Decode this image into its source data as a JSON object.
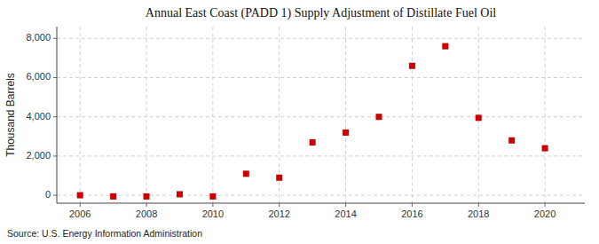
{
  "chart_data": {
    "type": "scatter",
    "title": "Annual East Coast (PADD 1) Supply Adjustment of Distillate Fuel Oil",
    "y_label": "Thousand Barrels",
    "source": "Source: U.S. Energy Information Administration",
    "x": [
      2006,
      2007,
      2008,
      2009,
      2010,
      2011,
      2012,
      2013,
      2014,
      2015,
      2016,
      2017,
      2018,
      2019,
      2020
    ],
    "values": [
      5,
      -55,
      -55,
      55,
      -55,
      1100,
      900,
      2700,
      3200,
      4000,
      6600,
      7600,
      3950,
      2800,
      2400
    ],
    "color": "#cc0000",
    "marker": "square",
    "xlim": [
      2005.3,
      2021.2
    ],
    "xticks": [
      2006,
      2008,
      2010,
      2012,
      2014,
      2016,
      2018,
      2020
    ],
    "ylim": [
      -400,
      8600
    ],
    "yticks": [
      0,
      {
        "value": 2000,
        "label": "2,000"
      },
      {
        "value": 4000,
        "label": "4,000"
      },
      {
        "value": 6000,
        "label": "6,000"
      },
      {
        "value": 8000,
        "label": "8,000"
      }
    ],
    "grid": true
  }
}
